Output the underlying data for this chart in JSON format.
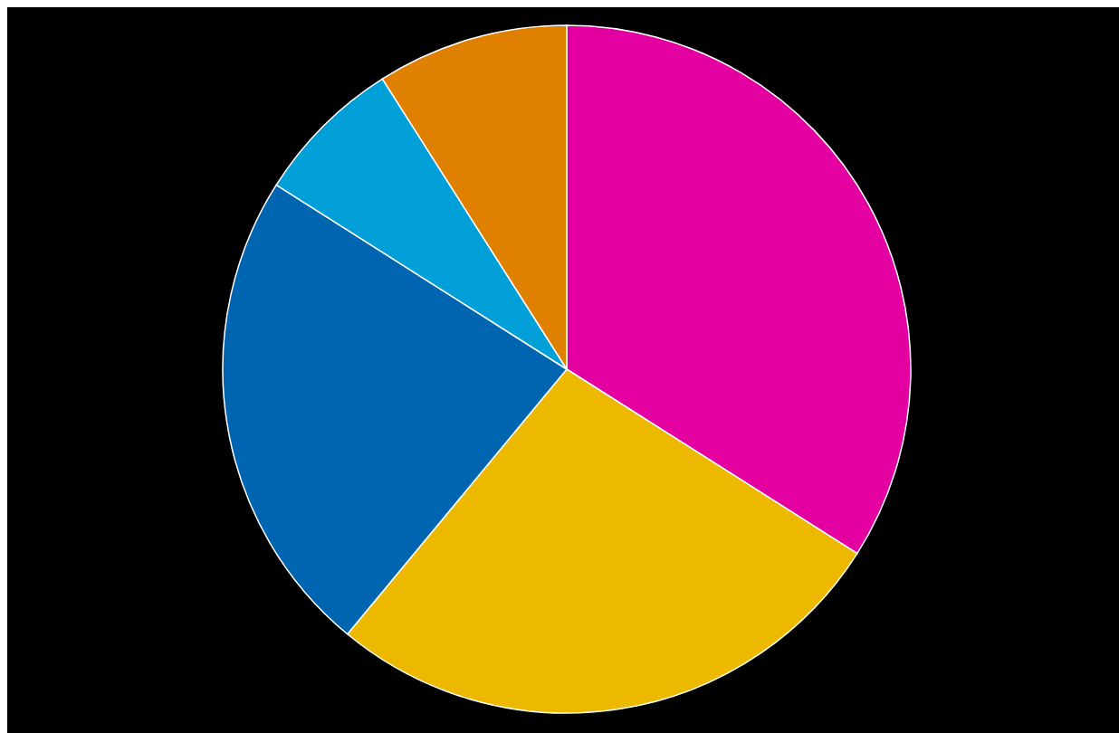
{
  "chart_data": {
    "type": "pie",
    "categories": [
      null,
      null,
      null,
      null,
      null
    ],
    "values": [
      34,
      27,
      23,
      7,
      9
    ],
    "colors": [
      "#e400a0",
      "#edb900",
      "#0065b0",
      "#009fd8",
      "#e08000"
    ]
  }
}
